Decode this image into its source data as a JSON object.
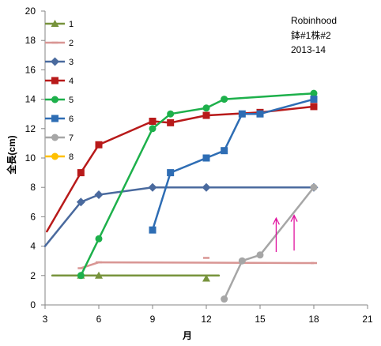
{
  "chart_data": {
    "type": "line",
    "xlabel": "月",
    "ylabel": "全長(cm)",
    "xlim": [
      3,
      21
    ],
    "ylim": [
      0,
      20
    ],
    "x_ticks": [
      "3",
      "6",
      "9",
      "12",
      "15",
      "18",
      "21"
    ],
    "y_ticks": [
      "0",
      "2",
      "4",
      "6",
      "8",
      "10",
      "12",
      "14",
      "16",
      "18",
      "20"
    ],
    "grid": false,
    "legend_position": "top-left",
    "annotation": [
      "Robinhood",
      "鉢#1株#2",
      "2013-14"
    ],
    "annotation_position": "top-right",
    "arrow_color": "#E0139F",
    "arrows": [
      {
        "x": 15.9,
        "y_from": 3.6,
        "y_to": 5.9
      },
      {
        "x": 16.9,
        "y_from": 3.7,
        "y_to": 6.1
      }
    ],
    "series": [
      {
        "name": "1",
        "color": "#77933C",
        "marker": "triangle",
        "points": [
          [
            3.4,
            2
          ],
          [
            12.7,
            2
          ]
        ],
        "marker_points": [
          [
            5,
            2
          ],
          [
            6,
            2
          ],
          [
            12,
            1.8
          ]
        ]
      },
      {
        "name": "2",
        "color": "#D99694",
        "marker": "dash",
        "points": [
          [
            5,
            2.5
          ],
          [
            6,
            2.9
          ],
          [
            18,
            2.85
          ]
        ],
        "marker_points": [
          [
            5,
            2.5
          ],
          [
            6,
            2.9
          ],
          [
            12,
            3.2
          ],
          [
            18,
            2.85
          ]
        ]
      },
      {
        "name": "3",
        "color": "#4A6A9E",
        "marker": "diamond",
        "points": [
          [
            3,
            4
          ],
          [
            5,
            7
          ],
          [
            6,
            7.5
          ],
          [
            9,
            8
          ],
          [
            12,
            8
          ],
          [
            18,
            8
          ]
        ],
        "marker_points": [
          [
            5,
            7
          ],
          [
            6,
            7.5
          ],
          [
            9,
            8
          ],
          [
            12,
            8
          ],
          [
            18,
            8
          ]
        ]
      },
      {
        "name": "4",
        "color": "#B81A1A",
        "marker": "square",
        "points": [
          [
            3.1,
            5
          ],
          [
            5,
            9
          ],
          [
            6,
            10.9
          ],
          [
            9,
            12.5
          ],
          [
            10,
            12.4
          ],
          [
            12,
            12.9
          ],
          [
            15,
            13.1
          ],
          [
            18,
            13.5
          ]
        ],
        "marker_points": [
          [
            5,
            9
          ],
          [
            6,
            10.9
          ],
          [
            9,
            12.5
          ],
          [
            10,
            12.4
          ],
          [
            12,
            12.9
          ],
          [
            15,
            13.1
          ],
          [
            18,
            13.5
          ]
        ]
      },
      {
        "name": "5",
        "color": "#1DB04B",
        "marker": "circle",
        "points": [
          [
            5,
            2
          ],
          [
            6,
            4.5
          ],
          [
            9,
            12
          ],
          [
            10,
            13
          ],
          [
            12,
            13.4
          ],
          [
            13,
            14
          ],
          [
            18,
            14.4
          ]
        ]
      },
      {
        "name": "6",
        "color": "#2E6DB4",
        "marker": "square",
        "points": [
          [
            9,
            5.1
          ],
          [
            10,
            9
          ],
          [
            12,
            10
          ],
          [
            13,
            10.5
          ],
          [
            14,
            13
          ],
          [
            15,
            13
          ],
          [
            18,
            14
          ]
        ]
      },
      {
        "name": "7",
        "color": "#A6A6A6",
        "marker": "circle",
        "points": [
          [
            13,
            0.4
          ],
          [
            14,
            3
          ],
          [
            15,
            3.4
          ],
          [
            18,
            8
          ]
        ]
      },
      {
        "name": "8",
        "color": "#FFC000",
        "marker": "circle",
        "points": []
      }
    ]
  }
}
